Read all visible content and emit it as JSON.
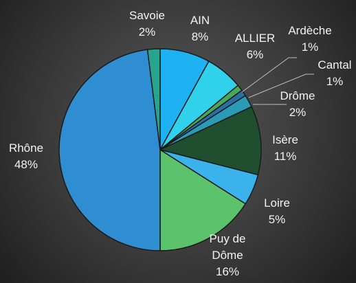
{
  "chart_data": {
    "type": "pie",
    "categories": [
      "AIN",
      "ALLIER",
      "Ardèche",
      "Cantal",
      "Drôme",
      "Isère",
      "Loire",
      "Puy de Dôme",
      "Rhône",
      "Savoie"
    ],
    "values": [
      8,
      6,
      1,
      1,
      2,
      11,
      5,
      16,
      48,
      2
    ],
    "value_labels": [
      "8%",
      "6%",
      "1%",
      "1%",
      "2%",
      "11%",
      "5%",
      "16%",
      "48%",
      "2%"
    ],
    "colors": [
      "#1fb2f2",
      "#2fd2ea",
      "#4aa85a",
      "#2b6ea6",
      "#2a9bb4",
      "#1f4f2e",
      "#3cb2ec",
      "#5cc26c",
      "#2f8dd2",
      "#27a58c"
    ]
  }
}
